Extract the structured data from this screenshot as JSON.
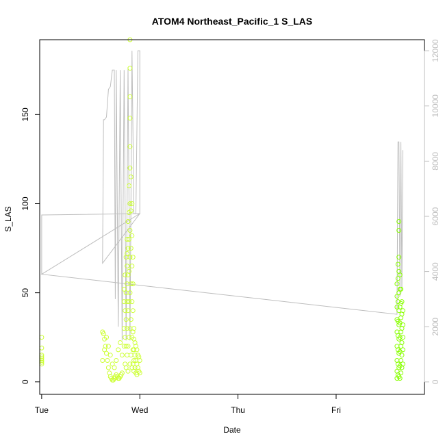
{
  "chart_data": {
    "type": "scatter",
    "title": "ATOM4 Northeast_Pacific_1 S_LAS",
    "xlabel": "Date",
    "ylabel": "S_LAS",
    "x_ticks": [
      "Tue",
      "Wed",
      "Thu",
      "Fri"
    ],
    "xlim": [
      -0.02,
      3.9
    ],
    "ylim": [
      -7,
      192
    ],
    "y_ticks": [
      0,
      50,
      100,
      150
    ],
    "y2lim": [
      -450,
      12400
    ],
    "y2_ticks": [
      0,
      2000,
      4000,
      6000,
      8000,
      10000,
      12000
    ],
    "x_unit": "days since Tuesday 00:00",
    "colors": {
      "points_early": "#ccff33",
      "points_late": "#88ff00",
      "secondary_line": "#bdbdbd",
      "axis": "#000000",
      "right_axis": "#bdbdbd"
    },
    "series": [
      {
        "type": "scatter",
        "axis": "left",
        "points": [
          [
            0.0,
            10
          ],
          [
            0.0,
            11
          ],
          [
            0.0,
            12
          ],
          [
            0.0,
            13
          ],
          [
            0.0,
            14
          ],
          [
            0.0,
            15
          ],
          [
            0.0,
            19
          ],
          [
            0.0,
            25
          ],
          [
            0.62,
            28
          ],
          [
            0.63,
            27
          ],
          [
            0.64,
            24
          ],
          [
            0.65,
            20
          ],
          [
            0.66,
            16
          ],
          [
            0.67,
            12
          ],
          [
            0.68,
            8
          ],
          [
            0.69,
            5
          ],
          [
            0.7,
            3
          ],
          [
            0.71,
            2
          ],
          [
            0.72,
            1
          ],
          [
            0.73,
            1
          ],
          [
            0.74,
            2
          ],
          [
            0.75,
            3
          ],
          [
            0.76,
            4
          ],
          [
            0.77,
            3
          ],
          [
            0.78,
            2
          ],
          [
            0.79,
            2
          ],
          [
            0.8,
            3
          ],
          [
            0.81,
            4
          ],
          [
            0.82,
            5
          ],
          [
            0.62,
            12
          ],
          [
            0.64,
            18
          ],
          [
            0.66,
            25
          ],
          [
            0.68,
            20
          ],
          [
            0.7,
            15
          ],
          [
            0.72,
            10
          ],
          [
            0.74,
            8
          ],
          [
            0.76,
            12
          ],
          [
            0.78,
            18
          ],
          [
            0.8,
            22
          ],
          [
            0.82,
            15
          ],
          [
            0.84,
            20
          ],
          [
            0.84,
            30
          ],
          [
            0.84,
            45
          ],
          [
            0.84,
            52
          ],
          [
            0.85,
            60
          ],
          [
            0.85,
            40
          ],
          [
            0.85,
            25
          ],
          [
            0.85,
            10
          ],
          [
            0.86,
            70
          ],
          [
            0.86,
            50
          ],
          [
            0.86,
            35
          ],
          [
            0.86,
            20
          ],
          [
            0.86,
            8
          ],
          [
            0.87,
            80
          ],
          [
            0.87,
            72
          ],
          [
            0.87,
            65
          ],
          [
            0.87,
            55
          ],
          [
            0.87,
            45
          ],
          [
            0.87,
            30
          ],
          [
            0.87,
            15
          ],
          [
            0.88,
            90
          ],
          [
            0.88,
            75
          ],
          [
            0.88,
            60
          ],
          [
            0.88,
            40
          ],
          [
            0.88,
            20
          ],
          [
            0.88,
            6
          ],
          [
            0.89,
            110
          ],
          [
            0.89,
            95
          ],
          [
            0.89,
            80
          ],
          [
            0.89,
            62
          ],
          [
            0.89,
            45
          ],
          [
            0.89,
            25
          ],
          [
            0.9,
            192
          ],
          [
            0.9,
            176
          ],
          [
            0.9,
            160
          ],
          [
            0.9,
            148
          ],
          [
            0.9,
            132
          ],
          [
            0.9,
            120
          ],
          [
            0.9,
            100
          ],
          [
            0.9,
            85
          ],
          [
            0.9,
            70
          ],
          [
            0.9,
            50
          ],
          [
            0.9,
            30
          ],
          [
            0.9,
            10
          ],
          [
            0.91,
            115
          ],
          [
            0.91,
            96
          ],
          [
            0.91,
            75
          ],
          [
            0.91,
            55
          ],
          [
            0.91,
            35
          ],
          [
            0.91,
            15
          ],
          [
            0.92,
            100
          ],
          [
            0.92,
            82
          ],
          [
            0.92,
            65
          ],
          [
            0.92,
            45
          ],
          [
            0.92,
            25
          ],
          [
            0.92,
            8
          ],
          [
            0.93,
            70
          ],
          [
            0.93,
            55
          ],
          [
            0.93,
            40
          ],
          [
            0.93,
            28
          ],
          [
            0.93,
            18
          ],
          [
            0.93,
            10
          ],
          [
            0.94,
            30
          ],
          [
            0.94,
            24
          ],
          [
            0.94,
            18
          ],
          [
            0.94,
            12
          ],
          [
            0.94,
            6
          ],
          [
            0.95,
            22
          ],
          [
            0.95,
            15
          ],
          [
            0.95,
            8
          ],
          [
            0.96,
            20
          ],
          [
            0.96,
            12
          ],
          [
            0.96,
            5
          ],
          [
            0.97,
            18
          ],
          [
            0.97,
            10
          ],
          [
            0.97,
            4
          ],
          [
            0.98,
            15
          ],
          [
            0.98,
            8
          ],
          [
            0.99,
            14
          ],
          [
            0.99,
            6
          ],
          [
            1.0,
            12
          ],
          [
            1.0,
            5
          ],
          [
            3.62,
            2
          ],
          [
            3.62,
            6
          ],
          [
            3.62,
            12
          ],
          [
            3.62,
            20
          ],
          [
            3.62,
            28
          ],
          [
            3.62,
            35
          ],
          [
            3.62,
            42
          ],
          [
            3.62,
            48
          ],
          [
            3.62,
            55
          ],
          [
            3.63,
            4
          ],
          [
            3.63,
            10
          ],
          [
            3.63,
            18
          ],
          [
            3.63,
            26
          ],
          [
            3.63,
            34
          ],
          [
            3.63,
            45
          ],
          [
            3.63,
            58
          ],
          [
            3.63,
            66
          ],
          [
            3.64,
            3
          ],
          [
            3.64,
            8
          ],
          [
            3.64,
            16
          ],
          [
            3.64,
            24
          ],
          [
            3.64,
            32
          ],
          [
            3.64,
            40
          ],
          [
            3.64,
            50
          ],
          [
            3.64,
            62
          ],
          [
            3.64,
            70
          ],
          [
            3.64,
            85
          ],
          [
            3.64,
            90
          ],
          [
            3.65,
            2
          ],
          [
            3.65,
            9
          ],
          [
            3.65,
            17
          ],
          [
            3.65,
            25
          ],
          [
            3.65,
            33
          ],
          [
            3.65,
            42
          ],
          [
            3.65,
            52
          ],
          [
            3.65,
            60
          ],
          [
            3.66,
            5
          ],
          [
            3.66,
            12
          ],
          [
            3.66,
            20
          ],
          [
            3.66,
            28
          ],
          [
            3.66,
            36
          ],
          [
            3.66,
            44
          ],
          [
            3.66,
            52
          ],
          [
            3.67,
            8
          ],
          [
            3.67,
            15
          ],
          [
            3.67,
            22
          ],
          [
            3.67,
            30
          ],
          [
            3.67,
            38
          ],
          [
            3.67,
            45
          ],
          [
            3.68,
            10
          ],
          [
            3.68,
            18
          ],
          [
            3.68,
            25
          ],
          [
            3.68,
            32
          ],
          [
            3.68,
            40
          ]
        ]
      },
      {
        "type": "line",
        "axis": "right",
        "points": [
          [
            0.0,
            3900
          ],
          [
            0.0,
            6050
          ],
          [
            1.0,
            6100
          ],
          [
            0.62,
            4300
          ],
          [
            0.63,
            9500
          ],
          [
            0.64,
            9500
          ],
          [
            0.66,
            9600
          ],
          [
            0.68,
            10600
          ],
          [
            0.7,
            10700
          ],
          [
            0.72,
            11300
          ],
          [
            0.74,
            11300
          ],
          [
            0.75,
            3000
          ],
          [
            0.76,
            11300
          ],
          [
            0.78,
            2000
          ],
          [
            0.8,
            11300
          ],
          [
            0.82,
            1500
          ],
          [
            0.84,
            11300
          ],
          [
            0.86,
            1500
          ],
          [
            0.88,
            11400
          ],
          [
            0.9,
            1500
          ],
          [
            0.92,
            12000
          ],
          [
            0.94,
            6100
          ],
          [
            0.96,
            6100
          ],
          [
            0.98,
            12000
          ],
          [
            1.0,
            12000
          ],
          [
            1.0,
            6100
          ],
          [
            0.0,
            3900
          ],
          [
            3.62,
            2450
          ],
          [
            3.63,
            8700
          ],
          [
            3.64,
            8700
          ],
          [
            3.65,
            3100
          ],
          [
            3.66,
            8700
          ],
          [
            3.67,
            3300
          ],
          [
            3.68,
            8400
          ]
        ]
      }
    ]
  }
}
